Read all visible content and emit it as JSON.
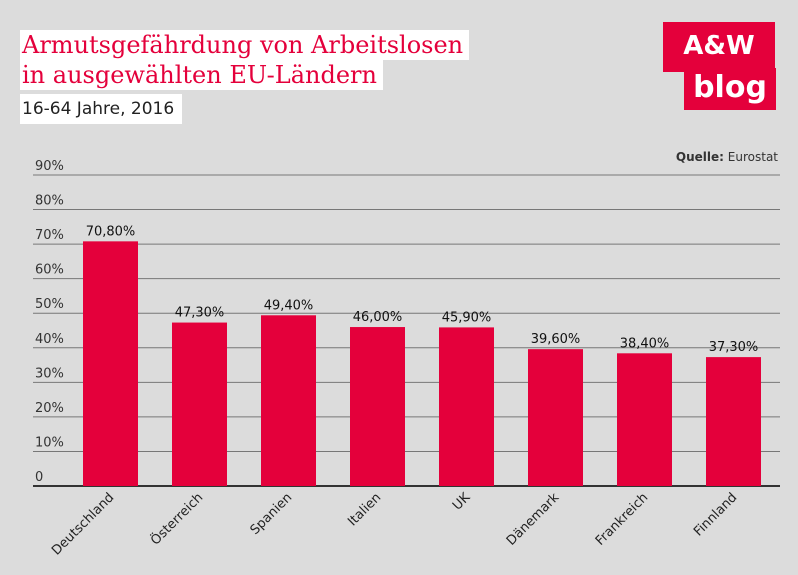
{
  "colors": {
    "bar": "#e4003b",
    "brand": "#e4003b",
    "background": "#dcdcdc",
    "grid": "#777777"
  },
  "logo": {
    "line1": "A&W",
    "line2": "blog"
  },
  "source": {
    "label": "Quelle",
    "separator": ":",
    "text": "Eurostat"
  },
  "chart_data": {
    "type": "bar",
    "title_line1": "Armutsgefährdung von Arbeitslosen",
    "title_line2": "in ausgewählten EU-Ländern",
    "subtitle": "16-64 Jahre, 2016",
    "categories": [
      "Deutschland",
      "Österreich",
      "Spanien",
      "Italien",
      "UK",
      "Dänemark",
      "Frankreich",
      "Finnland"
    ],
    "values": [
      70.8,
      47.3,
      49.4,
      46.0,
      45.9,
      39.6,
      38.4,
      37.3
    ],
    "data_labels": [
      "70,80%",
      "47,30%",
      "49,40%",
      "46,00%",
      "45,90%",
      "39,60%",
      "38,40%",
      "37,30%"
    ],
    "yticks": [
      0,
      10,
      20,
      30,
      40,
      50,
      60,
      70,
      80,
      90
    ],
    "ytick_labels": [
      "0",
      "10%",
      "20%",
      "30%",
      "40%",
      "50%",
      "60%",
      "70%",
      "80%",
      "90%"
    ],
    "ylim": [
      0,
      90
    ],
    "grid": true,
    "xlabel": "",
    "ylabel": ""
  }
}
